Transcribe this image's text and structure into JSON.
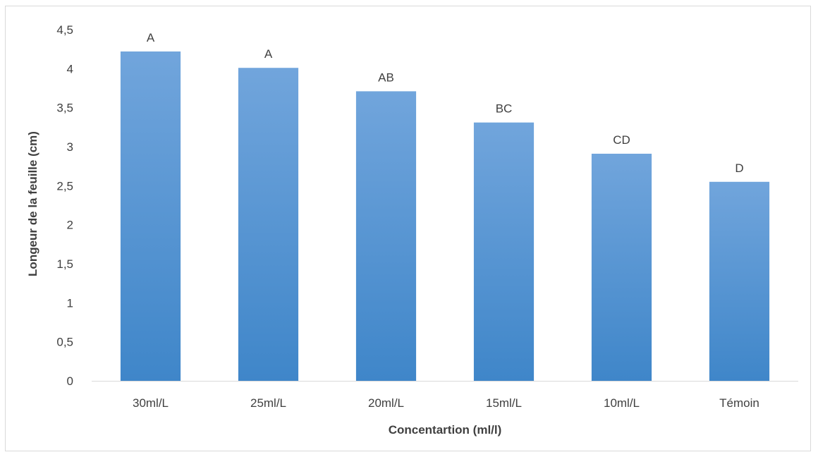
{
  "chart_data": {
    "type": "bar",
    "title": "",
    "xlabel": "Concentartion (ml/l)",
    "ylabel": "Longeur de la feuille (cm)",
    "categories": [
      "30ml/L",
      "25ml/L",
      "20ml/L",
      "15ml/L",
      "10ml/L",
      "Témoin"
    ],
    "values": [
      4.22,
      4.01,
      3.71,
      3.31,
      2.91,
      2.55
    ],
    "data_labels": [
      "A",
      "A",
      "AB",
      "BC",
      "CD",
      "D"
    ],
    "ylim": [
      0,
      4.5
    ],
    "y_ticks": [
      0,
      0.5,
      1,
      1.5,
      2,
      2.5,
      3,
      3.5,
      4,
      4.5
    ],
    "y_tick_labels": [
      "0",
      "0,5",
      "1",
      "1,5",
      "2",
      "2,5",
      "3",
      "3,5",
      "4",
      "4,5"
    ],
    "grid": false,
    "legend": "none",
    "bar_color_top": "#71a5dc",
    "bar_color_bottom": "#3f86c9"
  }
}
